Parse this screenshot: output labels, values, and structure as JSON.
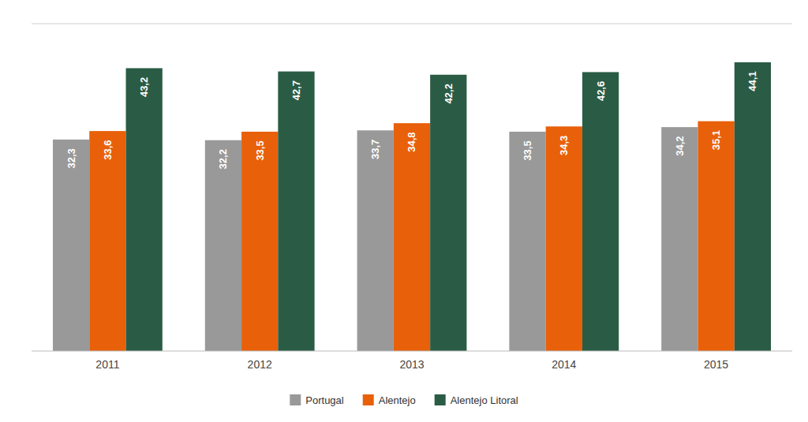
{
  "chart_data": {
    "type": "bar",
    "categories": [
      "2011",
      "2012",
      "2013",
      "2014",
      "2015"
    ],
    "series": [
      {
        "name": "Portugal",
        "color": "#999999",
        "values": [
          32.3,
          32.2,
          33.7,
          33.5,
          34.2
        ],
        "value_labels": [
          "32,3",
          "32,2",
          "33,7",
          "33,5",
          "34,2"
        ]
      },
      {
        "name": "Alentejo",
        "color": "#E8600A",
        "values": [
          33.6,
          33.5,
          34.8,
          34.3,
          35.1
        ],
        "value_labels": [
          "33,6",
          "33,5",
          "34,8",
          "34,3",
          "35,1"
        ]
      },
      {
        "name": "Alentejo Litoral",
        "color": "#2A5C45",
        "values": [
          43.2,
          42.7,
          42.2,
          42.6,
          44.1
        ],
        "value_labels": [
          "43,2",
          "42,7",
          "42,2",
          "42,6",
          "44,1"
        ]
      }
    ],
    "ylim": [
      0,
      50
    ],
    "grid": false,
    "legend": "bottom",
    "data_labels": true,
    "tick_labels": "x"
  }
}
